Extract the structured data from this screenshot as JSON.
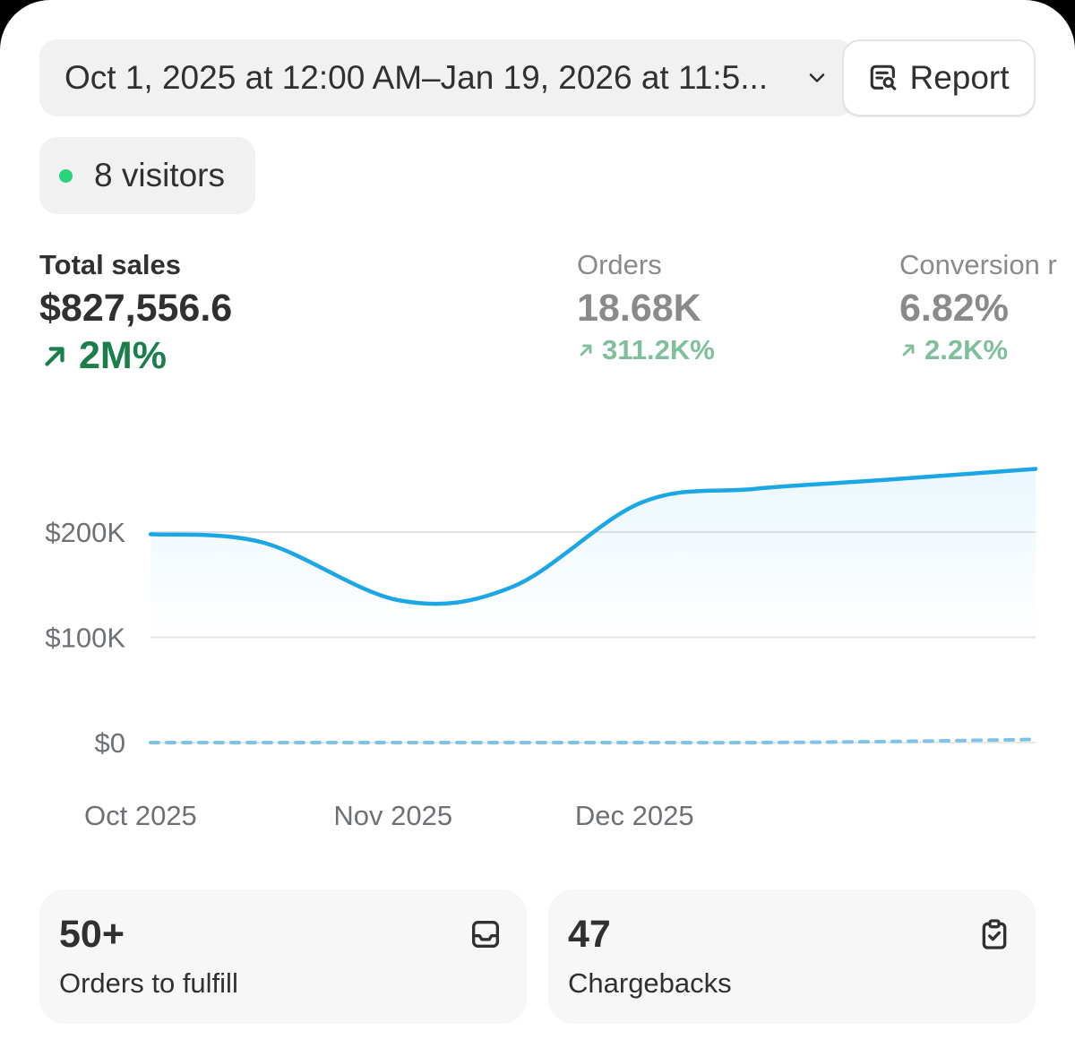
{
  "header": {
    "date_range": "Oct 1, 2025 at 12:00 AM–Jan 19, 2026 at 11:5...",
    "report_label": "Report"
  },
  "visitors": {
    "label": "8 visitors",
    "status_color": "#29d37a"
  },
  "metrics": [
    {
      "label": "Total sales",
      "value": "$827,556.6",
      "change": "2M%"
    },
    {
      "label": "Orders",
      "value": "18.68K",
      "change": "311.2K%"
    },
    {
      "label": "Conversion r",
      "value": "6.82%",
      "change": "2.2K%"
    }
  ],
  "chart_data": {
    "type": "line",
    "x": [
      "2025-10-01",
      "2025-10-15",
      "2025-11-01",
      "2025-11-15",
      "2025-12-01",
      "2025-12-15",
      "2026-01-01",
      "2026-01-19"
    ],
    "series": [
      {
        "values": [
          198000,
          190000,
          135000,
          148000,
          228000,
          241000,
          250000,
          260000
        ],
        "color": "#1ba6e6",
        "style": "solid"
      },
      {
        "values": [
          0,
          0,
          0,
          0,
          0,
          0,
          1000,
          3000
        ],
        "color": "#7fc4e6",
        "style": "dashed"
      }
    ],
    "y_ticks": [
      {
        "value": 0,
        "label": "$0"
      },
      {
        "value": 100000,
        "label": "$100K"
      },
      {
        "value": 200000,
        "label": "$200K"
      }
    ],
    "x_ticks": [
      {
        "value": "2025-10-01",
        "label": "Oct 2025"
      },
      {
        "value": "2025-11-01",
        "label": "Nov 2025"
      },
      {
        "value": "2025-12-01",
        "label": "Dec 2025"
      }
    ],
    "grid": true,
    "ylim": [
      0,
      260000
    ]
  },
  "cards": [
    {
      "value": "50+",
      "label": "Orders to fulfill",
      "icon": "inbox-icon"
    },
    {
      "value": "47",
      "label": "Chargebacks",
      "icon": "clipboard-check-icon"
    }
  ],
  "colors": {
    "positive": "#1a7f4b",
    "positive_dim": "#7fbf9c",
    "line": "#1ba6e6"
  }
}
